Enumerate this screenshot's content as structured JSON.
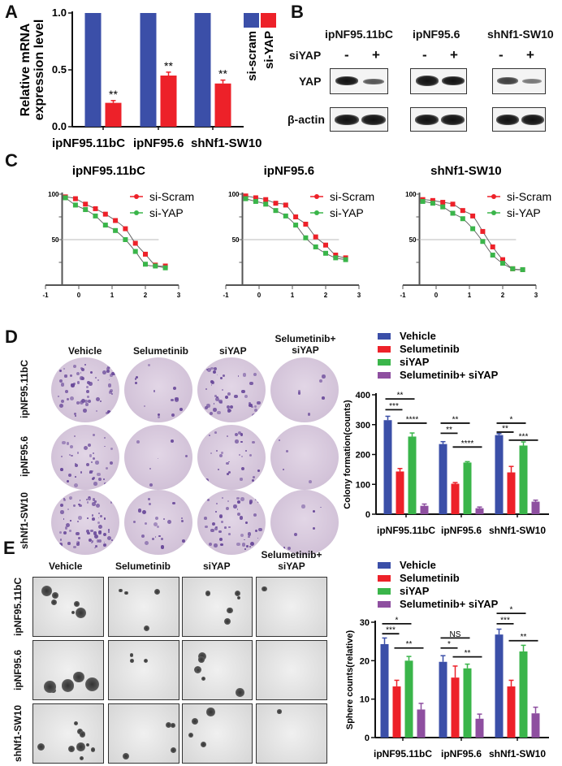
{
  "panels": {
    "A": "A",
    "B": "B",
    "C": "C",
    "D": "D",
    "E": "E"
  },
  "colors": {
    "blue": "#3b4fa8",
    "red": "#ed2129",
    "green": "#3ab54a",
    "purple": "#8e4fa0",
    "grid": "#bbbbbb"
  },
  "panel_b": {
    "cell_lines": [
      "ipNF95.11bC",
      "ipNF95.6",
      "shNf1-SW10"
    ],
    "row_siyap": "siYAP",
    "minus": "-",
    "plus": "+",
    "row_yap": "YAP",
    "row_actin": "β-actin"
  },
  "panel_d": {
    "columns": [
      "Vehicle",
      "Selumetinib",
      "siYAP",
      "Selumetinib+\nsiYAP"
    ],
    "rows": [
      "ipNF95.11bC",
      "ipNF95.6",
      "shNf1-SW10"
    ]
  },
  "panel_e": {
    "columns": [
      "Vehicle",
      "Selumetinib",
      "siYAP",
      "Selumetinib+\nsiYAP"
    ],
    "rows": [
      "ipNF95.11bC",
      "ipNF95.6",
      "shNf1-SW10"
    ]
  },
  "chart_data": [
    {
      "id": "A",
      "type": "bar",
      "ylabel": "Relative mRNA\nexpression level",
      "categories": [
        "ipNF95.11bC",
        "ipNF95.6",
        "shNf1-SW10"
      ],
      "ylim": [
        0,
        1.0
      ],
      "yticks": [
        0.0,
        0.5,
        1.0
      ],
      "ytick_labels": [
        "0.0",
        "0.5",
        "1.0"
      ],
      "legend": "right",
      "series": [
        {
          "name": "si-scram",
          "color": "#3b4fa8",
          "values": [
            1.0,
            1.0,
            1.0
          ],
          "errors": [
            0,
            0,
            0
          ]
        },
        {
          "name": "si-YAP",
          "color": "#ed2129",
          "values": [
            0.21,
            0.45,
            0.38
          ],
          "errors": [
            0.02,
            0.03,
            0.03
          ]
        }
      ],
      "annotations": [
        {
          "group": 0,
          "series": 1,
          "label": "**"
        },
        {
          "group": 1,
          "series": 1,
          "label": "**"
        },
        {
          "group": 2,
          "series": 1,
          "label": "**"
        }
      ]
    },
    {
      "id": "C1",
      "type": "line",
      "title": "ipNF95.11bC",
      "xlim": [
        -1,
        3
      ],
      "xticks": [
        -1,
        0,
        1,
        2,
        3
      ],
      "ylim": [
        0,
        100
      ],
      "yticks": [
        50,
        100
      ],
      "reference_line": 50,
      "legend": "top-right",
      "x": [
        -0.4,
        -0.1,
        0.2,
        0.5,
        0.8,
        1.1,
        1.4,
        1.7,
        2.0,
        2.3,
        2.6
      ],
      "series": [
        {
          "name": "si-Scram",
          "color": "#ed2129",
          "values": [
            97,
            95,
            89,
            84,
            78,
            71,
            62,
            46,
            34,
            22,
            21
          ]
        },
        {
          "name": "si-YAP",
          "color": "#3ab54a",
          "values": [
            96,
            88,
            83,
            76,
            66,
            60,
            50,
            37,
            23,
            21,
            19
          ]
        }
      ]
    },
    {
      "id": "C2",
      "type": "line",
      "title": "ipNF95.6",
      "xlim": [
        -1,
        3
      ],
      "xticks": [
        -1,
        0,
        1,
        2,
        3
      ],
      "ylim": [
        0,
        100
      ],
      "yticks": [
        50,
        100
      ],
      "reference_line": 50,
      "legend": "top-right",
      "x": [
        -0.4,
        -0.1,
        0.2,
        0.5,
        0.8,
        1.1,
        1.4,
        1.7,
        2.0,
        2.3,
        2.6
      ],
      "series": [
        {
          "name": "si-Scram",
          "color": "#ed2129",
          "values": [
            98,
            96,
            94,
            90,
            88,
            75,
            67,
            53,
            44,
            33,
            30
          ]
        },
        {
          "name": "si-YAP",
          "color": "#3ab54a",
          "values": [
            95,
            92,
            89,
            82,
            76,
            66,
            52,
            42,
            35,
            30,
            28
          ]
        }
      ]
    },
    {
      "id": "C3",
      "type": "line",
      "title": "shNf1-SW10",
      "xlim": [
        -1,
        3
      ],
      "xticks": [
        -1,
        0,
        1,
        2,
        3
      ],
      "ylim": [
        0,
        100
      ],
      "yticks": [
        50,
        100
      ],
      "reference_line": 50,
      "legend": "top-right",
      "x": [
        -0.4,
        -0.1,
        0.2,
        0.5,
        0.8,
        1.1,
        1.4,
        1.7,
        2.0,
        2.3,
        2.6
      ],
      "series": [
        {
          "name": "si-Scram",
          "color": "#ed2129",
          "values": [
            94,
            93,
            91,
            89,
            82,
            76,
            59,
            42,
            28,
            18,
            17
          ]
        },
        {
          "name": "si-YAP",
          "color": "#3ab54a",
          "values": [
            92,
            90,
            86,
            79,
            73,
            62,
            48,
            33,
            24,
            18,
            17
          ]
        }
      ]
    },
    {
      "id": "D",
      "type": "bar",
      "ylabel": "Colony formation(counts)",
      "categories": [
        "ipNF95.11bC",
        "ipNF95.6",
        "shNf1-SW10"
      ],
      "ylim": [
        0,
        400
      ],
      "yticks": [
        0,
        100,
        200,
        300,
        400
      ],
      "ytick_labels": [
        "0",
        "100",
        "200",
        "300",
        "400"
      ],
      "legend": "top",
      "series": [
        {
          "name": "Vehicle",
          "color": "#3b4fa8",
          "values": [
            315,
            235,
            265
          ],
          "errors": [
            13,
            8,
            5
          ]
        },
        {
          "name": "Selumetinib",
          "color": "#ed2129",
          "values": [
            143,
            102,
            140
          ],
          "errors": [
            10,
            4,
            20
          ]
        },
        {
          "name": "siYAP",
          "color": "#3ab54a",
          "values": [
            260,
            173,
            230
          ],
          "errors": [
            12,
            3,
            12
          ]
        },
        {
          "name": "Selumetinib+ siYAP",
          "color": "#8e4fa0",
          "values": [
            28,
            20,
            42
          ],
          "errors": [
            6,
            4,
            5
          ]
        }
      ],
      "brackets": [
        {
          "group": 0,
          "from": 0,
          "to": 2,
          "y": 386,
          "label": "**"
        },
        {
          "group": 0,
          "from": 0,
          "to": 1,
          "y": 350,
          "label": "***"
        },
        {
          "group": 0,
          "from": 1,
          "to": 3,
          "y": 305,
          "label": "****"
        },
        {
          "group": 1,
          "from": 0,
          "to": 2,
          "y": 305,
          "label": "**"
        },
        {
          "group": 1,
          "from": 0,
          "to": 1,
          "y": 271,
          "label": "**"
        },
        {
          "group": 1,
          "from": 1,
          "to": 3,
          "y": 225,
          "label": "****"
        },
        {
          "group": 2,
          "from": 0,
          "to": 2,
          "y": 305,
          "label": "*"
        },
        {
          "group": 2,
          "from": 0,
          "to": 1,
          "y": 275,
          "label": "**"
        },
        {
          "group": 2,
          "from": 1,
          "to": 3,
          "y": 248,
          "label": "***"
        }
      ]
    },
    {
      "id": "E",
      "type": "bar",
      "ylabel": "Sphere counts(relative)",
      "categories": [
        "ipNF95.11bC",
        "ipNF95.6",
        "shNf1-SW10"
      ],
      "ylim": [
        0,
        30
      ],
      "yticks": [
        0,
        10,
        20,
        30
      ],
      "ytick_labels": [
        "0",
        "10",
        "20",
        "30"
      ],
      "legend": "top",
      "series": [
        {
          "name": "Vehicle",
          "color": "#3b4fa8",
          "values": [
            24.3,
            19.7,
            26.8
          ],
          "errors": [
            1.6,
            1.6,
            1.4
          ]
        },
        {
          "name": "Selumetinib",
          "color": "#ed2129",
          "values": [
            13.3,
            15.6,
            13.3
          ],
          "errors": [
            1.6,
            3.0,
            1.6
          ]
        },
        {
          "name": "siYAP",
          "color": "#3ab54a",
          "values": [
            20.0,
            18.0,
            22.4
          ],
          "errors": [
            1.1,
            1.1,
            1.6
          ]
        },
        {
          "name": "Selumetinib+ siYAP",
          "color": "#8e4fa0",
          "values": [
            7.3,
            4.9,
            6.3
          ],
          "errors": [
            1.6,
            1.2,
            1.6
          ]
        }
      ],
      "brackets": [
        {
          "group": 0,
          "from": 0,
          "to": 2,
          "y": 29.6,
          "label": "*"
        },
        {
          "group": 0,
          "from": 0,
          "to": 1,
          "y": 27.0,
          "label": "***"
        },
        {
          "group": 0,
          "from": 1,
          "to": 3,
          "y": 23.3,
          "label": "**"
        },
        {
          "group": 1,
          "from": 0,
          "to": 2,
          "y": 25.9,
          "label": "NS"
        },
        {
          "group": 1,
          "from": 0,
          "to": 1,
          "y": 23.3,
          "label": "*"
        },
        {
          "group": 1,
          "from": 1,
          "to": 3,
          "y": 21.0,
          "label": "**"
        },
        {
          "group": 2,
          "from": 0,
          "to": 2,
          "y": 32.3,
          "label": "*"
        },
        {
          "group": 2,
          "from": 0,
          "to": 1,
          "y": 29.6,
          "label": "***"
        },
        {
          "group": 2,
          "from": 1,
          "to": 3,
          "y": 25.2,
          "label": "**"
        }
      ]
    }
  ]
}
